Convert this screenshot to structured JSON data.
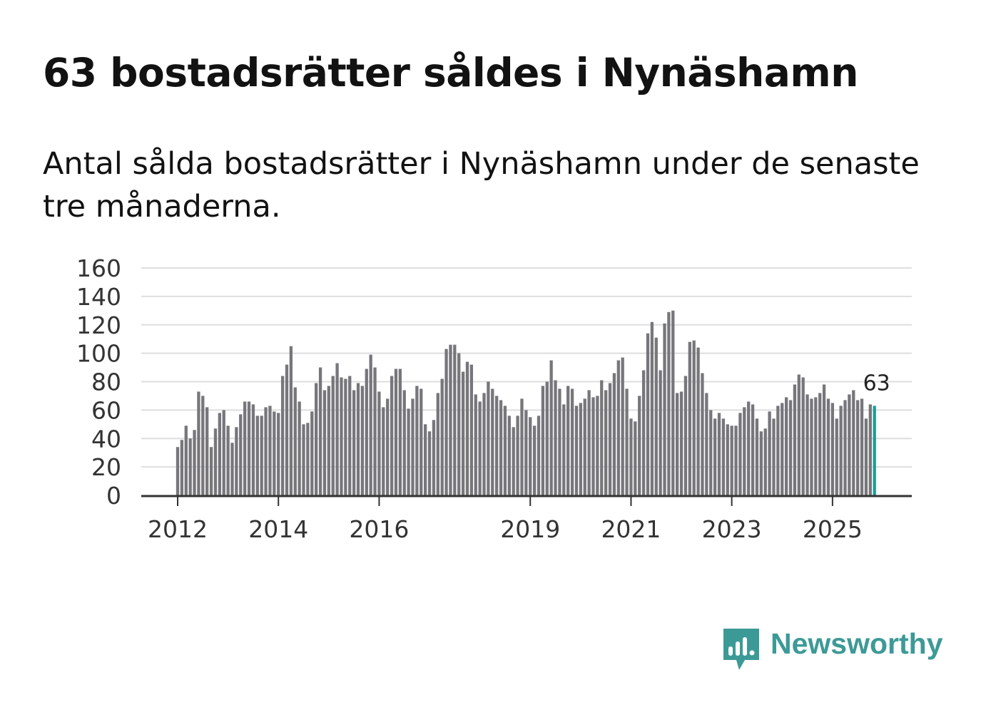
{
  "header": {
    "title": "63 bostadsrätter såldes i Nynäshamn",
    "subtitle": "Antal sålda bostadsrätter i Nynäshamn under de senaste tre månaderna."
  },
  "brand": {
    "name": "Newsworthy",
    "color": "#3c9a96"
  },
  "colors": {
    "bar": "#77767b",
    "highlight": "#1a9e95",
    "grid": "#dedede",
    "axis": "#333333"
  },
  "chart_data": {
    "type": "bar",
    "title": "63 bostadsrätter såldes i Nynäshamn",
    "subtitle": "Antal sålda bostadsrätter i Nynäshamn under de senaste tre månaderna.",
    "xlabel": "",
    "ylabel": "",
    "ylim": [
      0,
      160
    ],
    "yticks": [
      "0",
      "20",
      "40",
      "60",
      "80",
      "100",
      "120",
      "140",
      "160"
    ],
    "xticks": [
      {
        "label": "2012",
        "index": 0
      },
      {
        "label": "2014",
        "index": 24
      },
      {
        "label": "2016",
        "index": 48
      },
      {
        "label": "2019",
        "index": 84
      },
      {
        "label": "2021",
        "index": 108
      },
      {
        "label": "2023",
        "index": 132
      },
      {
        "label": "2025",
        "index": 156
      }
    ],
    "grid": true,
    "highlight_label": "63",
    "series": [
      {
        "name": "Antal sålda bostadsrätter",
        "values": [
          34,
          39,
          49,
          40,
          46,
          73,
          70,
          62,
          34,
          47,
          58,
          60,
          49,
          37,
          48,
          57,
          66,
          66,
          64,
          56,
          56,
          62,
          63,
          59,
          58,
          84,
          92,
          105,
          76,
          66,
          50,
          51,
          59,
          79,
          90,
          74,
          77,
          84,
          93,
          83,
          82,
          84,
          74,
          79,
          77,
          89,
          99,
          90,
          73,
          62,
          68,
          84,
          89,
          89,
          74,
          61,
          68,
          77,
          75,
          50,
          45,
          53,
          72,
          82,
          103,
          106,
          106,
          100,
          87,
          94,
          92,
          71,
          66,
          72,
          80,
          75,
          70,
          67,
          63,
          56,
          48,
          56,
          68,
          60,
          55,
          49,
          56,
          77,
          80,
          95,
          81,
          75,
          64,
          77,
          75,
          63,
          65,
          68,
          74,
          69,
          70,
          81,
          74,
          79,
          86,
          95,
          97,
          75,
          54,
          52,
          70,
          88,
          114,
          122,
          111,
          88,
          121,
          129,
          130,
          72,
          73,
          84,
          108,
          109,
          104,
          86,
          72,
          60,
          54,
          58,
          54,
          50,
          49,
          49,
          58,
          62,
          66,
          64,
          54,
          45,
          47,
          59,
          54,
          63,
          65,
          69,
          67,
          78,
          85,
          83,
          71,
          68,
          69,
          72,
          78,
          68,
          65,
          54,
          63,
          67,
          71,
          74,
          67,
          68,
          54,
          64,
          63
        ]
      }
    ]
  }
}
